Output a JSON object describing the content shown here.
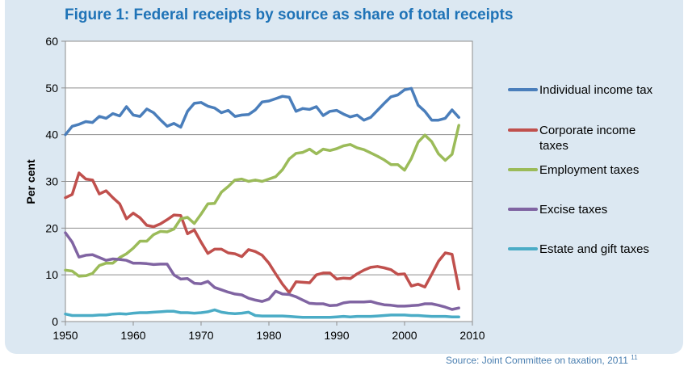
{
  "title": "Figure 1: Federal receipts by source as share of total receipts",
  "source": {
    "text": "Source: Joint Committee on taxation, 2011",
    "footnote": "11"
  },
  "chart_data": {
    "type": "line",
    "title": "Figure 1: Federal receipts by source as share of total receipts",
    "xlabel": "",
    "ylabel": "Per cent",
    "xlim": [
      1950,
      2010
    ],
    "ylim": [
      0,
      60
    ],
    "xticks": [
      1950,
      1960,
      1970,
      1980,
      1990,
      2000,
      2010
    ],
    "yticks": [
      0,
      10,
      20,
      30,
      40,
      50,
      60
    ],
    "grid": "horizontal",
    "legend": "right",
    "series": [
      {
        "name": "Individual income tax",
        "color": "#4a7ebb",
        "x": [
          1950,
          1951,
          1952,
          1953,
          1954,
          1955,
          1956,
          1957,
          1958,
          1959,
          1960,
          1961,
          1962,
          1963,
          1964,
          1965,
          1966,
          1967,
          1968,
          1969,
          1970,
          1971,
          1972,
          1973,
          1974,
          1975,
          1976,
          1977,
          1978,
          1979,
          1980,
          1981,
          1982,
          1983,
          1984,
          1985,
          1986,
          1987,
          1988,
          1989,
          1990,
          1991,
          1992,
          1993,
          1994,
          1995,
          1996,
          1997,
          1998,
          1999,
          2000,
          2001,
          2002,
          2003,
          2004,
          2005,
          2006,
          2007,
          2008
        ],
        "values": [
          40.0,
          41.8,
          42.2,
          42.8,
          42.6,
          43.9,
          43.5,
          44.5,
          44.0,
          46.0,
          44.2,
          43.9,
          45.5,
          44.7,
          43.2,
          41.8,
          42.4,
          41.6,
          45.0,
          46.7,
          46.9,
          46.1,
          45.7,
          44.7,
          45.2,
          43.9,
          44.2,
          44.3,
          45.3,
          47.0,
          47.2,
          47.7,
          48.2,
          48.0,
          45.0,
          45.6,
          45.4,
          46.0,
          44.1,
          45.0,
          45.2,
          44.4,
          43.8,
          44.2,
          43.1,
          43.7,
          45.2,
          46.7,
          48.1,
          48.5,
          49.6,
          49.9,
          46.3,
          45.0,
          43.1,
          43.1,
          43.5,
          45.3,
          43.7
        ]
      },
      {
        "name": "Corporate income taxes",
        "color": "#c0504d",
        "x": [
          1950,
          1951,
          1952,
          1953,
          1954,
          1955,
          1956,
          1957,
          1958,
          1959,
          1960,
          1961,
          1962,
          1963,
          1964,
          1965,
          1966,
          1967,
          1968,
          1969,
          1970,
          1971,
          1972,
          1973,
          1974,
          1975,
          1976,
          1977,
          1978,
          1979,
          1980,
          1981,
          1982,
          1983,
          1984,
          1985,
          1986,
          1987,
          1988,
          1989,
          1990,
          1991,
          1992,
          1993,
          1994,
          1995,
          1996,
          1997,
          1998,
          1999,
          2000,
          2001,
          2002,
          2003,
          2004,
          2005,
          2006,
          2007,
          2008
        ],
        "values": [
          26.5,
          27.2,
          31.8,
          30.5,
          30.3,
          27.3,
          28.0,
          26.5,
          25.2,
          22.0,
          23.2,
          22.2,
          20.6,
          20.3,
          20.9,
          21.8,
          22.8,
          22.7,
          18.8,
          19.6,
          17.0,
          14.6,
          15.5,
          15.5,
          14.7,
          14.5,
          13.9,
          15.4,
          15.0,
          14.2,
          12.5,
          10.2,
          8.0,
          6.2,
          8.5,
          8.4,
          8.3,
          10.0,
          10.4,
          10.4,
          9.1,
          9.3,
          9.2,
          10.2,
          11.0,
          11.6,
          11.8,
          11.5,
          11.1,
          10.1,
          10.2,
          7.6,
          8.0,
          7.4,
          10.1,
          12.9,
          14.7,
          14.4,
          7.0
        ]
      },
      {
        "name": "Employment taxes",
        "color": "#9bbb59",
        "x": [
          1950,
          1951,
          1952,
          1953,
          1954,
          1955,
          1956,
          1957,
          1958,
          1959,
          1960,
          1961,
          1962,
          1963,
          1964,
          1965,
          1966,
          1967,
          1968,
          1969,
          1970,
          1971,
          1972,
          1973,
          1974,
          1975,
          1976,
          1977,
          1978,
          1979,
          1980,
          1981,
          1982,
          1983,
          1984,
          1985,
          1986,
          1987,
          1988,
          1989,
          1990,
          1991,
          1992,
          1993,
          1994,
          1995,
          1996,
          1997,
          1998,
          1999,
          2000,
          2001,
          2002,
          2003,
          2004,
          2005,
          2006,
          2007,
          2008
        ],
        "values": [
          11.0,
          10.8,
          9.7,
          9.8,
          10.3,
          12.0,
          12.5,
          12.5,
          13.7,
          14.5,
          15.7,
          17.2,
          17.2,
          18.6,
          19.3,
          19.2,
          19.8,
          22.0,
          22.3,
          21.0,
          23.0,
          25.2,
          25.3,
          27.7,
          28.9,
          30.3,
          30.5,
          30.0,
          30.3,
          30.0,
          30.5,
          31.0,
          32.5,
          34.8,
          36.0,
          36.2,
          36.9,
          35.9,
          36.9,
          36.6,
          37.0,
          37.6,
          37.9,
          37.2,
          36.8,
          36.1,
          35.4,
          34.6,
          33.6,
          33.6,
          32.4,
          34.9,
          38.4,
          39.9,
          38.5,
          35.9,
          34.5,
          35.8,
          42.0
        ]
      },
      {
        "name": "Excise taxes",
        "color": "#8064a2",
        "x": [
          1950,
          1951,
          1952,
          1953,
          1954,
          1955,
          1956,
          1957,
          1958,
          1959,
          1960,
          1961,
          1962,
          1963,
          1964,
          1965,
          1966,
          1967,
          1968,
          1969,
          1970,
          1971,
          1972,
          1973,
          1974,
          1975,
          1976,
          1977,
          1978,
          1979,
          1980,
          1981,
          1982,
          1983,
          1984,
          1985,
          1986,
          1987,
          1988,
          1989,
          1990,
          1991,
          1992,
          1993,
          1994,
          1995,
          1996,
          1997,
          1998,
          1999,
          2000,
          2001,
          2002,
          2003,
          2004,
          2005,
          2006,
          2007,
          2008
        ],
        "values": [
          19.0,
          17.0,
          13.8,
          14.2,
          14.3,
          13.7,
          13.1,
          13.4,
          13.3,
          13.1,
          12.5,
          12.5,
          12.4,
          12.2,
          12.3,
          12.3,
          10.0,
          9.1,
          9.2,
          8.2,
          8.1,
          8.6,
          7.3,
          6.8,
          6.3,
          5.9,
          5.7,
          5.0,
          4.6,
          4.3,
          4.8,
          6.5,
          5.9,
          5.8,
          5.3,
          4.6,
          3.9,
          3.8,
          3.8,
          3.4,
          3.5,
          4.0,
          4.2,
          4.2,
          4.2,
          4.3,
          3.9,
          3.6,
          3.5,
          3.3,
          3.3,
          3.4,
          3.5,
          3.8,
          3.8,
          3.5,
          3.1,
          2.6,
          2.9
        ]
      },
      {
        "name": "Estate and gift taxes",
        "color": "#4bacc6",
        "x": [
          1950,
          1951,
          1952,
          1953,
          1954,
          1955,
          1956,
          1957,
          1958,
          1959,
          1960,
          1961,
          1962,
          1963,
          1964,
          1965,
          1966,
          1967,
          1968,
          1969,
          1970,
          1971,
          1972,
          1973,
          1974,
          1975,
          1976,
          1977,
          1978,
          1979,
          1980,
          1981,
          1982,
          1983,
          1984,
          1985,
          1986,
          1987,
          1988,
          1989,
          1990,
          1991,
          1992,
          1993,
          1994,
          1995,
          1996,
          1997,
          1998,
          1999,
          2000,
          2001,
          2002,
          2003,
          2004,
          2005,
          2006,
          2007,
          2008
        ],
        "values": [
          1.6,
          1.3,
          1.3,
          1.3,
          1.3,
          1.4,
          1.4,
          1.6,
          1.7,
          1.6,
          1.8,
          1.9,
          1.9,
          2.0,
          2.1,
          2.2,
          2.2,
          1.9,
          1.9,
          1.8,
          1.9,
          2.1,
          2.5,
          2.0,
          1.8,
          1.7,
          1.8,
          2.0,
          1.3,
          1.2,
          1.2,
          1.2,
          1.2,
          1.1,
          1.0,
          0.9,
          0.9,
          0.9,
          0.9,
          0.9,
          1.0,
          1.1,
          1.0,
          1.1,
          1.1,
          1.1,
          1.2,
          1.3,
          1.4,
          1.4,
          1.4,
          1.3,
          1.3,
          1.2,
          1.1,
          1.1,
          1.1,
          1.0,
          1.0
        ]
      }
    ]
  }
}
